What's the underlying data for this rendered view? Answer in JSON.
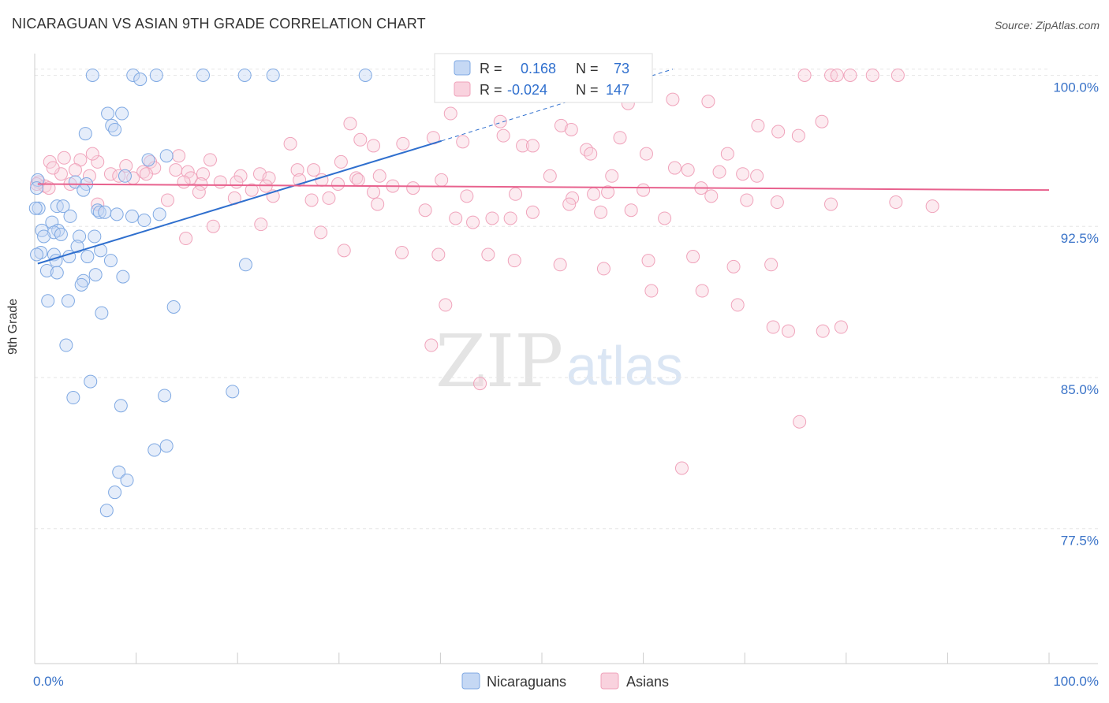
{
  "header": {
    "title": "NICARAGUAN VS ASIAN 9TH GRADE CORRELATION CHART",
    "source": "Source: ZipAtlas.com"
  },
  "watermark": {
    "zip": "ZIP",
    "atlas": "atlas"
  },
  "colors": {
    "blue": "#7fa9e3",
    "blue_line": "#2f6fce",
    "pink": "#f0a3bb",
    "pink_line": "#e8628e",
    "axis_text": "#3a73c8"
  },
  "stats": {
    "blue": {
      "r_label": "R =",
      "r_value": "0.168",
      "n_label": "N =",
      "n_value": "73"
    },
    "pink": {
      "r_label": "R =",
      "r_value": "-0.024",
      "n_label": "N =",
      "n_value": "147"
    }
  },
  "chart_data": {
    "type": "scatter",
    "title": "NICARAGUAN VS ASIAN 9TH GRADE CORRELATION CHART",
    "xlabel": "",
    "ylabel": "9th Grade",
    "xlim": [
      0,
      100
    ],
    "ylim": [
      70.8,
      100.8
    ],
    "y_ticks": [
      77.5,
      85.0,
      92.5,
      100.0
    ],
    "y_tick_labels": [
      "77.5%",
      "85.0%",
      "92.5%",
      "100.0%"
    ],
    "x_tick_labels": [
      "0.0%",
      "100.0%"
    ],
    "grid": true,
    "legend_position": "bottom-center",
    "series": [
      {
        "name": "Nicaraguans",
        "color": "#7fa9e3",
        "trend": {
          "x": [
            0.3,
            40.1
          ],
          "y": [
            90.65,
            96.74
          ],
          "dashed_to": [
            62.9,
            100.3
          ]
        },
        "points": [
          [
            5.7,
            100
          ],
          [
            9.7,
            100
          ],
          [
            12,
            100
          ],
          [
            16.6,
            100
          ],
          [
            20.7,
            100
          ],
          [
            23.5,
            100
          ],
          [
            32.6,
            100
          ],
          [
            10.4,
            99.8
          ],
          [
            7.2,
            98.1
          ],
          [
            8.6,
            98.1
          ],
          [
            7.6,
            97.5
          ],
          [
            7.9,
            97.3
          ],
          [
            5.0,
            97.1
          ],
          [
            13.0,
            96.0
          ],
          [
            11.2,
            95.8
          ],
          [
            8.9,
            95.0
          ],
          [
            0.3,
            94.8
          ],
          [
            4.0,
            94.7
          ],
          [
            5.1,
            94.6
          ],
          [
            0.2,
            94.4
          ],
          [
            4.8,
            94.3
          ],
          [
            2.2,
            93.5
          ],
          [
            2.8,
            93.5
          ],
          [
            0.4,
            93.4
          ],
          [
            6.2,
            93.3
          ],
          [
            6.4,
            93.2
          ],
          [
            6.9,
            93.2
          ],
          [
            8.1,
            93.1
          ],
          [
            3.5,
            93.0
          ],
          [
            9.6,
            93.0
          ],
          [
            12.3,
            93.1
          ],
          [
            10.8,
            92.8
          ],
          [
            1.7,
            92.7
          ],
          [
            0.7,
            92.3
          ],
          [
            2.3,
            92.3
          ],
          [
            1.9,
            92.2
          ],
          [
            0.9,
            92.0
          ],
          [
            2.6,
            92.1
          ],
          [
            4.4,
            92.0
          ],
          [
            5.9,
            92.0
          ],
          [
            4.2,
            91.5
          ],
          [
            6.5,
            91.3
          ],
          [
            0.6,
            91.2
          ],
          [
            1.9,
            91.1
          ],
          [
            3.4,
            91.0
          ],
          [
            5.2,
            91.0
          ],
          [
            2.1,
            90.8
          ],
          [
            7.5,
            90.8
          ],
          [
            20.8,
            90.6
          ],
          [
            1.2,
            90.3
          ],
          [
            2.2,
            90.2
          ],
          [
            6.0,
            90.1
          ],
          [
            8.7,
            90.0
          ],
          [
            4.8,
            89.8
          ],
          [
            4.6,
            89.6
          ],
          [
            1.3,
            88.8
          ],
          [
            3.3,
            88.8
          ],
          [
            13.7,
            88.5
          ],
          [
            6.6,
            88.2
          ],
          [
            3.1,
            86.6
          ],
          [
            5.5,
            84.8
          ],
          [
            3.8,
            84.0
          ],
          [
            12.8,
            84.1
          ],
          [
            19.5,
            84.3
          ],
          [
            8.5,
            83.6
          ],
          [
            13.0,
            81.6
          ],
          [
            11.8,
            81.4
          ],
          [
            8.3,
            80.3
          ],
          [
            9.1,
            79.9
          ],
          [
            7.9,
            79.3
          ],
          [
            7.1,
            78.4
          ],
          [
            0.1,
            93.4
          ],
          [
            0.2,
            91.1
          ]
        ]
      },
      {
        "name": "Asians",
        "color": "#f0a3bb",
        "trend": {
          "x": [
            0.3,
            100
          ],
          "y": [
            94.6,
            94.3
          ]
        },
        "points": [
          [
            75.9,
            100
          ],
          [
            78.5,
            100
          ],
          [
            79.1,
            100
          ],
          [
            80.4,
            100
          ],
          [
            82.6,
            100
          ],
          [
            85.1,
            100
          ],
          [
            58.5,
            98.6
          ],
          [
            62.9,
            98.8
          ],
          [
            66.4,
            98.7
          ],
          [
            41.0,
            98.1
          ],
          [
            45.9,
            97.7
          ],
          [
            31.1,
            97.6
          ],
          [
            51.9,
            97.5
          ],
          [
            77.6,
            97.7
          ],
          [
            71.3,
            97.5
          ],
          [
            73.3,
            97.2
          ],
          [
            52.9,
            97.3
          ],
          [
            46.2,
            97.0
          ],
          [
            75.3,
            97.0
          ],
          [
            57.7,
            96.9
          ],
          [
            39.3,
            96.9
          ],
          [
            32.1,
            96.8
          ],
          [
            25.2,
            96.6
          ],
          [
            33.4,
            96.5
          ],
          [
            36.3,
            96.6
          ],
          [
            42.2,
            96.7
          ],
          [
            48.1,
            96.5
          ],
          [
            49.1,
            96.5
          ],
          [
            60.3,
            96.1
          ],
          [
            54.4,
            96.3
          ],
          [
            54.8,
            96.1
          ],
          [
            68.3,
            96.1
          ],
          [
            2.9,
            95.9
          ],
          [
            1.5,
            95.7
          ],
          [
            4.5,
            95.8
          ],
          [
            6.2,
            95.7
          ],
          [
            5.7,
            96.1
          ],
          [
            11.4,
            95.7
          ],
          [
            14.2,
            96.0
          ],
          [
            17.3,
            95.8
          ],
          [
            9.0,
            95.5
          ],
          [
            11.8,
            95.4
          ],
          [
            10.7,
            95.2
          ],
          [
            7.5,
            95.1
          ],
          [
            2.6,
            95.1
          ],
          [
            1.8,
            95.4
          ],
          [
            4.0,
            95.3
          ],
          [
            5.4,
            95.0
          ],
          [
            8.3,
            95.0
          ],
          [
            9.7,
            94.9
          ],
          [
            11.0,
            95.1
          ],
          [
            13.9,
            95.3
          ],
          [
            15.1,
            95.2
          ],
          [
            16.6,
            95.1
          ],
          [
            15.4,
            94.9
          ],
          [
            18.3,
            94.7
          ],
          [
            20.3,
            95.0
          ],
          [
            22.2,
            95.1
          ],
          [
            23.1,
            94.9
          ],
          [
            25.9,
            95.3
          ],
          [
            27.5,
            95.3
          ],
          [
            30.2,
            95.7
          ],
          [
            31.7,
            94.9
          ],
          [
            34.0,
            95.0
          ],
          [
            40.1,
            94.8
          ],
          [
            50.8,
            95.0
          ],
          [
            56.9,
            95.0
          ],
          [
            63.1,
            95.4
          ],
          [
            64.4,
            95.3
          ],
          [
            67.5,
            95.2
          ],
          [
            69.8,
            95.1
          ],
          [
            71.2,
            95.0
          ],
          [
            0.4,
            94.7
          ],
          [
            1.0,
            94.5
          ],
          [
            1.4,
            94.4
          ],
          [
            3.5,
            94.6
          ],
          [
            14.7,
            94.7
          ],
          [
            16.4,
            94.6
          ],
          [
            19.9,
            94.7
          ],
          [
            21.4,
            94.3
          ],
          [
            22.8,
            94.5
          ],
          [
            26.1,
            94.8
          ],
          [
            28.3,
            94.8
          ],
          [
            29.9,
            94.6
          ],
          [
            31.9,
            94.8
          ],
          [
            33.4,
            94.2
          ],
          [
            35.3,
            94.5
          ],
          [
            37.3,
            94.4
          ],
          [
            42.6,
            94.0
          ],
          [
            47.4,
            94.1
          ],
          [
            53.0,
            93.9
          ],
          [
            55.1,
            94.1
          ],
          [
            56.5,
            94.2
          ],
          [
            60.0,
            94.3
          ],
          [
            65.7,
            94.4
          ],
          [
            66.7,
            94.0
          ],
          [
            70.2,
            93.8
          ],
          [
            73.2,
            93.7
          ],
          [
            78.5,
            93.6
          ],
          [
            84.9,
            93.7
          ],
          [
            88.5,
            93.5
          ],
          [
            6.2,
            93.6
          ],
          [
            13.1,
            93.8
          ],
          [
            16.2,
            94.2
          ],
          [
            19.7,
            93.9
          ],
          [
            23.5,
            94.0
          ],
          [
            27.3,
            93.8
          ],
          [
            29.0,
            93.9
          ],
          [
            33.8,
            93.6
          ],
          [
            38.5,
            93.3
          ],
          [
            41.5,
            92.9
          ],
          [
            43.2,
            92.7
          ],
          [
            45.1,
            92.9
          ],
          [
            46.9,
            92.9
          ],
          [
            49.1,
            93.2
          ],
          [
            52.7,
            93.6
          ],
          [
            55.8,
            93.2
          ],
          [
            58.8,
            93.3
          ],
          [
            62.1,
            92.9
          ],
          [
            14.9,
            91.9
          ],
          [
            17.6,
            92.5
          ],
          [
            22.3,
            92.6
          ],
          [
            28.2,
            92.2
          ],
          [
            30.5,
            91.3
          ],
          [
            36.2,
            91.2
          ],
          [
            39.8,
            91.1
          ],
          [
            44.7,
            91.1
          ],
          [
            47.3,
            90.8
          ],
          [
            51.8,
            90.6
          ],
          [
            56.1,
            90.4
          ],
          [
            60.5,
            90.8
          ],
          [
            64.9,
            91.0
          ],
          [
            68.9,
            90.5
          ],
          [
            72.6,
            90.6
          ],
          [
            60.8,
            89.3
          ],
          [
            65.8,
            89.3
          ],
          [
            69.3,
            88.6
          ],
          [
            72.8,
            87.5
          ],
          [
            74.3,
            87.3
          ],
          [
            77.7,
            87.3
          ],
          [
            79.5,
            87.5
          ],
          [
            40.5,
            88.6
          ],
          [
            39.1,
            86.6
          ],
          [
            43.9,
            84.7
          ],
          [
            75.4,
            82.8
          ],
          [
            63.8,
            80.5
          ],
          [
            0.2,
            94.6
          ]
        ]
      }
    ]
  }
}
